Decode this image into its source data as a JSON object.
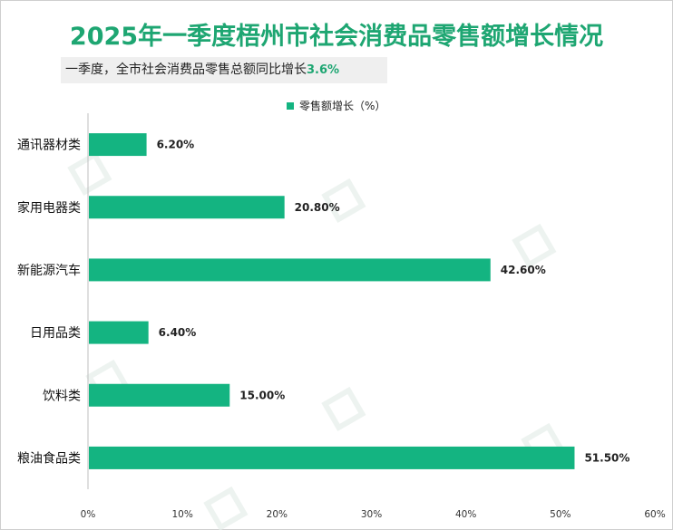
{
  "title": "2025年一季度梧州市社会消费品零售额增长情况",
  "subtitle": {
    "text": "一季度，全市社会消费品零售总额同比增长",
    "value": "3.6%"
  },
  "legend": {
    "label": "零售额增长（%）"
  },
  "colors": {
    "bar": "#14b481",
    "title": "#1ea672"
  },
  "chart_data": {
    "type": "bar",
    "orientation": "horizontal",
    "title": "2025年一季度梧州市社会消费品零售额增长情况",
    "categories": [
      "通讯器材类",
      "家用电器类",
      "新能源汽车",
      "日用品类",
      "饮料类",
      "粮油食品类"
    ],
    "series": [
      {
        "name": "零售额增长（%）",
        "values": [
          6.2,
          20.8,
          42.6,
          6.4,
          15.0,
          51.5
        ],
        "labels": [
          "6.20%",
          "20.80%",
          "42.60%",
          "6.40%",
          "15.00%",
          "51.50%"
        ]
      }
    ],
    "xlim": [
      0,
      60
    ],
    "xticks": [
      0,
      10,
      20,
      30,
      40,
      50,
      60
    ],
    "xtick_labels": [
      "0%",
      "10%",
      "20%",
      "30%",
      "40%",
      "50%",
      "60%"
    ],
    "xlabel": "",
    "ylabel": "",
    "legend_position": "top-center"
  }
}
